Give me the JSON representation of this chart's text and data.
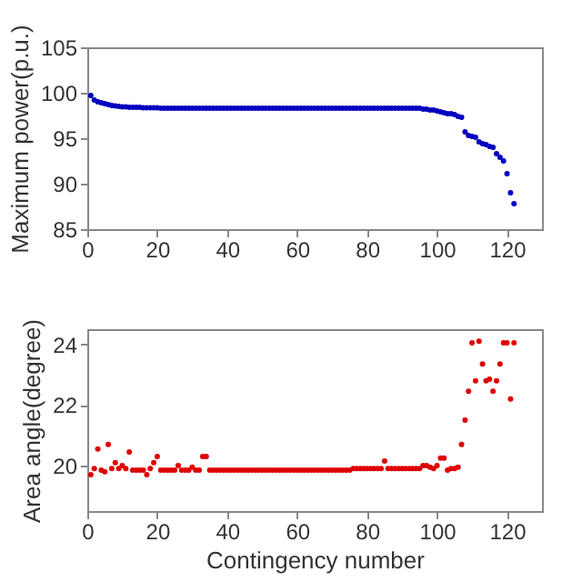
{
  "chart_data": [
    {
      "type": "scatter",
      "ylabel": "Maximum power(p.u.)",
      "xlim": [
        0,
        130
      ],
      "xticks": [
        0,
        20,
        40,
        60,
        80,
        100,
        120
      ],
      "ylim": [
        85,
        105
      ],
      "yticks": [
        85,
        90,
        95,
        100,
        105
      ],
      "marker": "circle",
      "grid": false,
      "x": [
        1,
        2,
        3,
        4,
        5,
        6,
        7,
        8,
        9,
        10,
        11,
        12,
        13,
        14,
        15,
        16,
        17,
        18,
        19,
        20,
        21,
        22,
        23,
        24,
        25,
        26,
        27,
        28,
        29,
        30,
        31,
        32,
        33,
        34,
        35,
        36,
        37,
        38,
        39,
        40,
        41,
        42,
        43,
        44,
        45,
        46,
        47,
        48,
        49,
        50,
        51,
        52,
        53,
        54,
        55,
        56,
        57,
        58,
        59,
        60,
        61,
        62,
        63,
        64,
        65,
        66,
        67,
        68,
        69,
        70,
        71,
        72,
        73,
        74,
        75,
        76,
        77,
        78,
        79,
        80,
        81,
        82,
        83,
        84,
        85,
        86,
        87,
        88,
        89,
        90,
        91,
        92,
        93,
        94,
        95,
        96,
        97,
        98,
        99,
        100,
        101,
        102,
        103,
        104,
        105,
        106,
        107,
        108,
        109,
        110,
        111,
        112,
        113,
        114,
        115,
        116,
        117,
        118,
        119,
        120,
        121,
        122
      ],
      "series": [
        {
          "color": "#0000c0",
          "values": [
            99.7,
            99.2,
            99.0,
            98.9,
            98.8,
            98.7,
            98.6,
            98.55,
            98.5,
            98.45,
            98.45,
            98.4,
            98.4,
            98.4,
            98.4,
            98.35,
            98.35,
            98.35,
            98.35,
            98.35,
            98.3,
            98.3,
            98.3,
            98.3,
            98.3,
            98.3,
            98.3,
            98.3,
            98.3,
            98.3,
            98.3,
            98.3,
            98.3,
            98.3,
            98.3,
            98.3,
            98.3,
            98.3,
            98.3,
            98.3,
            98.3,
            98.3,
            98.3,
            98.3,
            98.3,
            98.3,
            98.3,
            98.3,
            98.3,
            98.3,
            98.3,
            98.3,
            98.3,
            98.3,
            98.3,
            98.3,
            98.3,
            98.3,
            98.3,
            98.3,
            98.3,
            98.3,
            98.3,
            98.3,
            98.3,
            98.3,
            98.3,
            98.3,
            98.3,
            98.3,
            98.3,
            98.3,
            98.3,
            98.3,
            98.3,
            98.3,
            98.3,
            98.3,
            98.3,
            98.3,
            98.3,
            98.3,
            98.3,
            98.3,
            98.3,
            98.3,
            98.3,
            98.3,
            98.3,
            98.3,
            98.3,
            98.3,
            98.3,
            98.3,
            98.3,
            98.2,
            98.2,
            98.1,
            98.1,
            98.0,
            97.9,
            97.8,
            97.7,
            97.7,
            97.6,
            97.4,
            97.3,
            95.7,
            95.3,
            95.2,
            95.1,
            94.6,
            94.4,
            94.3,
            94.1,
            94.0,
            93.3,
            92.9,
            92.5,
            91.1,
            89.0,
            87.8
          ]
        }
      ]
    },
    {
      "type": "scatter",
      "xlabel": "Contingency number",
      "ylabel": "Area angle(degree)",
      "xlim": [
        0,
        130
      ],
      "xticks": [
        0,
        20,
        40,
        60,
        80,
        100,
        120
      ],
      "ylim": [
        18.5,
        24.5
      ],
      "yticks": [
        20,
        22,
        24
      ],
      "marker": "circle",
      "grid": false,
      "x": [
        1,
        2,
        3,
        4,
        5,
        6,
        7,
        8,
        9,
        10,
        11,
        12,
        13,
        14,
        15,
        16,
        17,
        18,
        19,
        20,
        21,
        22,
        23,
        24,
        25,
        26,
        27,
        28,
        29,
        30,
        31,
        32,
        33,
        34,
        35,
        36,
        37,
        38,
        39,
        40,
        41,
        42,
        43,
        44,
        45,
        46,
        47,
        48,
        49,
        50,
        51,
        52,
        53,
        54,
        55,
        56,
        57,
        58,
        59,
        60,
        61,
        62,
        63,
        64,
        65,
        66,
        67,
        68,
        69,
        70,
        71,
        72,
        73,
        74,
        75,
        76,
        77,
        78,
        79,
        80,
        81,
        82,
        83,
        84,
        85,
        86,
        87,
        88,
        89,
        90,
        91,
        92,
        93,
        94,
        95,
        96,
        97,
        98,
        99,
        100,
        101,
        102,
        103,
        104,
        105,
        106,
        107,
        108,
        109,
        110,
        111,
        112,
        113,
        114,
        115,
        116,
        117,
        118,
        119,
        120,
        121,
        122
      ],
      "series": [
        {
          "color": "#e00000",
          "values": [
            19.7,
            19.9,
            20.55,
            19.85,
            19.8,
            20.7,
            19.9,
            20.1,
            19.9,
            20.0,
            19.9,
            20.45,
            19.85,
            19.85,
            19.85,
            19.85,
            19.7,
            19.9,
            20.1,
            20.3,
            19.85,
            19.85,
            19.85,
            19.85,
            19.85,
            20.0,
            19.85,
            19.85,
            19.85,
            19.95,
            19.85,
            19.85,
            20.3,
            20.3,
            19.85,
            19.85,
            19.85,
            19.85,
            19.85,
            19.85,
            19.85,
            19.85,
            19.85,
            19.85,
            19.85,
            19.85,
            19.85,
            19.85,
            19.85,
            19.85,
            19.85,
            19.85,
            19.85,
            19.85,
            19.85,
            19.85,
            19.85,
            19.85,
            19.85,
            19.85,
            19.85,
            19.85,
            19.85,
            19.85,
            19.85,
            19.85,
            19.85,
            19.85,
            19.85,
            19.85,
            19.85,
            19.85,
            19.85,
            19.85,
            19.85,
            19.9,
            19.9,
            19.9,
            19.9,
            19.9,
            19.9,
            19.9,
            19.9,
            19.9,
            20.15,
            19.9,
            19.9,
            19.9,
            19.9,
            19.9,
            19.9,
            19.9,
            19.9,
            19.9,
            19.9,
            20.0,
            20.0,
            19.95,
            19.9,
            20.0,
            20.25,
            20.25,
            19.85,
            19.9,
            19.9,
            19.95,
            20.7,
            21.5,
            22.45,
            24.05,
            22.8,
            24.1,
            23.35,
            22.8,
            22.85,
            22.45,
            22.8,
            23.35,
            24.05,
            24.05,
            22.2,
            24.05
          ]
        }
      ]
    }
  ]
}
